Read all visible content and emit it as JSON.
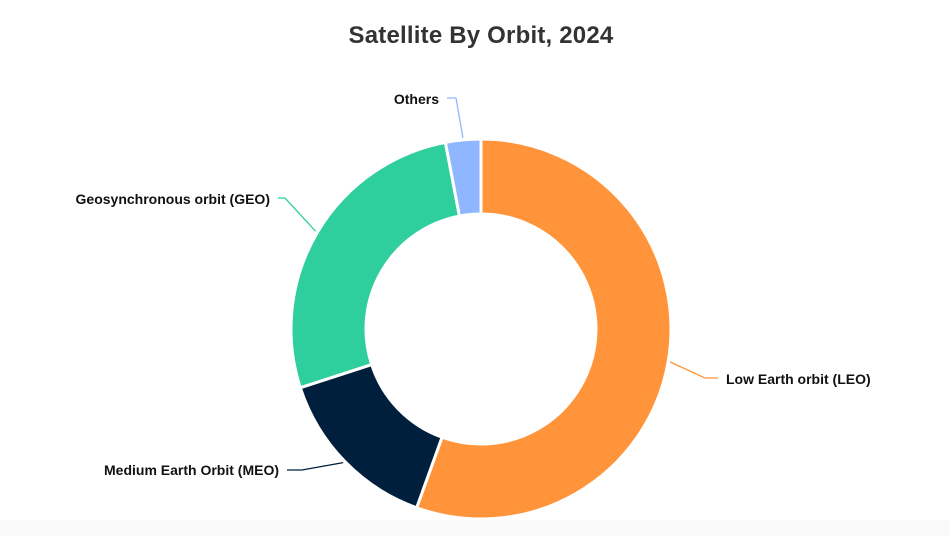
{
  "chart_data": {
    "type": "pie",
    "donut": true,
    "title": "Satellite By Orbit, 2024",
    "slices": [
      {
        "label": "Low Earth orbit (LEO)",
        "value": 55.5,
        "color": "#FF943B"
      },
      {
        "label": "Medium Earth Orbit (MEO)",
        "value": 14.5,
        "color": "#001F3D"
      },
      {
        "label": "Geosynchronous orbit (GEO)",
        "value": 27.0,
        "color": "#2ECF9C"
      },
      {
        "label": "Others",
        "value": 3.0,
        "color": "#8FB7FF"
      }
    ],
    "legend": "none"
  }
}
